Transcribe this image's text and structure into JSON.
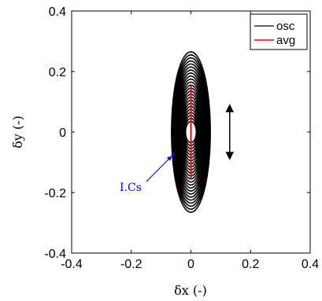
{
  "chart_data": {
    "type": "line",
    "title": "",
    "xlabel": "δx (-)",
    "ylabel": "δy (-)",
    "xlim": [
      -0.4,
      0.4
    ],
    "ylim": [
      -0.4,
      0.4
    ],
    "xticks": [
      -0.4,
      -0.2,
      0,
      0.2,
      0.4
    ],
    "yticks": [
      -0.4,
      -0.2,
      0,
      0.2,
      0.4
    ],
    "xtick_labels": [
      "-0.4",
      "-0.2",
      "0",
      "0.2",
      "0.4"
    ],
    "ytick_labels": [
      "-0.4",
      "-0.2",
      "0",
      "0.2",
      "0.4"
    ],
    "grid": false,
    "legend_position": "top-right",
    "series": [
      {
        "name": "osc",
        "color": "#000000",
        "loops": [
          {
            "rx": 0.065,
            "ry": 0.265
          },
          {
            "rx": 0.062,
            "ry": 0.255
          },
          {
            "rx": 0.06,
            "ry": 0.245
          },
          {
            "rx": 0.058,
            "ry": 0.235
          },
          {
            "rx": 0.056,
            "ry": 0.225
          },
          {
            "rx": 0.054,
            "ry": 0.215
          },
          {
            "rx": 0.052,
            "ry": 0.205
          },
          {
            "rx": 0.05,
            "ry": 0.195
          },
          {
            "rx": 0.048,
            "ry": 0.185
          },
          {
            "rx": 0.046,
            "ry": 0.175
          },
          {
            "rx": 0.044,
            "ry": 0.165
          },
          {
            "rx": 0.042,
            "ry": 0.155
          },
          {
            "rx": 0.04,
            "ry": 0.145
          },
          {
            "rx": 0.038,
            "ry": 0.135
          },
          {
            "rx": 0.036,
            "ry": 0.125
          },
          {
            "rx": 0.034,
            "ry": 0.115
          },
          {
            "rx": 0.032,
            "ry": 0.105
          },
          {
            "rx": 0.03,
            "ry": 0.095
          },
          {
            "rx": 0.028,
            "ry": 0.085
          },
          {
            "rx": 0.026,
            "ry": 0.075
          },
          {
            "rx": 0.024,
            "ry": 0.065
          },
          {
            "rx": 0.022,
            "ry": 0.055
          },
          {
            "rx": 0.02,
            "ry": 0.045
          },
          {
            "rx": 0.018,
            "ry": 0.035
          }
        ]
      },
      {
        "name": "avg",
        "color": "#ff0000",
        "x": [
          0,
          0
        ],
        "y": [
          -0.155,
          0.155
        ]
      }
    ],
    "annotations": [
      {
        "text": "I.Cs",
        "color": "#0000cc",
        "points_to": [
          -0.06,
          -0.075
        ]
      }
    ],
    "double_arrow": {
      "x": 0.13,
      "y": [
        -0.09,
        0.09
      ],
      "color": "#000000"
    }
  }
}
